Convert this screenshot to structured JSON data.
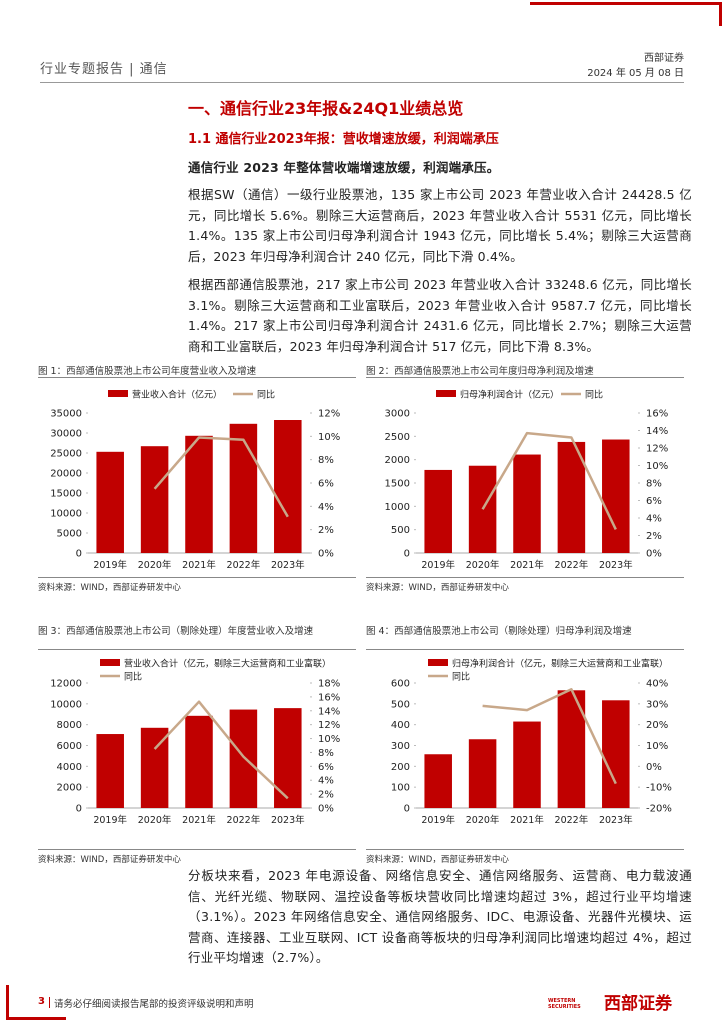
{
  "header": {
    "section": "行业专题报告 | 通信",
    "company": "西部证券",
    "date": "2024 年 05 月 08 日"
  },
  "heading": "一、通信行业23年报&24Q1业绩总览",
  "subheading": "1.1 通信行业2023年报：营收增速放缓，利润端承压",
  "paragraphs": [
    "通信行业 2023 年整体营收端增速放缓，利润端承压。",
    "根据SW（通信）一级行业股票池，135 家上市公司 2023 年营业收入合计 24428.5 亿元，同比增长 5.6%。剔除三大运营商后，2023 年营业收入合计 5531 亿元，同比增长 1.4%。135 家上市公司归母净利润合计 1943 亿元，同比增长 5.4%；剔除三大运营商后，2023 年归母净利润合计 240 亿元，同比下滑 0.4%。",
    "根据西部通信股票池，217 家上市公司 2023 年营业收入合计 33248.6 亿元，同比增长 3.1%。剔除三大运营商和工业富联后，2023 年营业收入合计 9587.7 亿元，同比增长 1.4%。217 家上市公司归母净利润合计 2431.6 亿元，同比增长 2.7%；剔除三大运营商和工业富联后，2023 年归母净利润合计 517 亿元，同比下滑 8.3%。",
    "分板块来看，2023 年电源设备、网络信息安全、通信网络服务、运营商、电力载波通信、光纤光缆、物联网、温控设备等板块营收同比增速均超过 3%，超过行业平均增速（3.1%）。2023 年网络信息安全、通信网络服务、IDC、电源设备、光器件光模块、运营商、连接器、工业互联网、ICT 设备商等板块的归母净利润同比增速均超过 4%，超过行业平均增速（2.7%）。"
  ],
  "chart_data": [
    {
      "type": "bar-line",
      "title": "图 1：西部通信股票池上市公司年度营业收入及增速",
      "source": "资料来源：WIND，西部证券研发中心",
      "categories": [
        "2019年",
        "2020年",
        "2021年",
        "2022年",
        "2023年"
      ],
      "series": [
        {
          "name": "营业收入合计（亿元）",
          "color": "#c00000",
          "type": "bar",
          "values": [
            25300,
            26700,
            29300,
            32300,
            33248.6
          ]
        },
        {
          "name": "同比",
          "color": "#c8a88a",
          "type": "line",
          "axis": "y2",
          "values": [
            null,
            5.5,
            9.9,
            9.7,
            3.1
          ]
        }
      ],
      "ylim": [
        0,
        35000
      ],
      "yticks": [
        0,
        5000,
        10000,
        15000,
        20000,
        25000,
        30000,
        35000
      ],
      "y2lim": [
        0,
        12
      ],
      "y2ticks": [
        {
          "value": 0,
          "label": "0%"
        },
        {
          "value": 2,
          "label": "2%"
        },
        {
          "value": 4,
          "label": "4%"
        },
        {
          "value": 6,
          "label": "6%"
        },
        {
          "value": 8,
          "label": "8%"
        },
        {
          "value": 10,
          "label": "10%"
        },
        {
          "value": 12,
          "label": "12%"
        }
      ],
      "legend": "top"
    },
    {
      "type": "bar-line",
      "title": "图 2：西部通信股票池上市公司年度归母净利润及增速",
      "source": "资料来源：WIND，西部证券研发中心",
      "categories": [
        "2019年",
        "2020年",
        "2021年",
        "2022年",
        "2023年"
      ],
      "series": [
        {
          "name": "归母净利润合计（亿元）",
          "color": "#c00000",
          "type": "bar",
          "values": [
            1780,
            1870,
            2110,
            2380,
            2431.6
          ]
        },
        {
          "name": "同比",
          "color": "#c8a88a",
          "type": "line",
          "axis": "y2",
          "values": [
            null,
            5,
            13.7,
            13.2,
            2.7
          ]
        }
      ],
      "ylim": [
        0,
        3000
      ],
      "yticks": [
        0,
        500,
        1000,
        1500,
        2000,
        2500,
        3000
      ],
      "y2lim": [
        0,
        16
      ],
      "y2ticks": [
        {
          "value": 0,
          "label": "0%"
        },
        {
          "value": 2,
          "label": "2%"
        },
        {
          "value": 4,
          "label": "4%"
        },
        {
          "value": 6,
          "label": "6%"
        },
        {
          "value": 8,
          "label": "8%"
        },
        {
          "value": 10,
          "label": "10%"
        },
        {
          "value": 12,
          "label": "12%"
        },
        {
          "value": 14,
          "label": "14%"
        },
        {
          "value": 16,
          "label": "16%"
        }
      ],
      "legend": "top"
    },
    {
      "type": "bar-line",
      "title": "图 3：西部通信股票池上市公司（剔除处理）年度营业收入及增速",
      "source": "资料来源：WIND，西部证券研发中心",
      "categories": [
        "2019年",
        "2020年",
        "2021年",
        "2022年",
        "2023年"
      ],
      "series": [
        {
          "name": "营业收入合计（亿元，剔除三大运营商和工业富联）",
          "color": "#c00000",
          "type": "bar",
          "values": [
            7100,
            7700,
            8850,
            9450,
            9587.7
          ]
        },
        {
          "name": "同比",
          "color": "#c8a88a",
          "type": "line",
          "axis": "y2",
          "values": [
            null,
            8.5,
            15.3,
            7.4,
            1.4
          ]
        }
      ],
      "ylim": [
        0,
        12000
      ],
      "yticks": [
        0,
        2000,
        4000,
        6000,
        8000,
        10000,
        12000
      ],
      "y2lim": [
        0,
        18
      ],
      "y2ticks": [
        {
          "value": 0,
          "label": "0%"
        },
        {
          "value": 2,
          "label": "2%"
        },
        {
          "value": 4,
          "label": "4%"
        },
        {
          "value": 6,
          "label": "6%"
        },
        {
          "value": 8,
          "label": "8%"
        },
        {
          "value": 10,
          "label": "10%"
        },
        {
          "value": 12,
          "label": "12%"
        },
        {
          "value": 14,
          "label": "14%"
        },
        {
          "value": 16,
          "label": "16%"
        },
        {
          "value": 18,
          "label": "18%"
        }
      ],
      "legend": "top-stacked"
    },
    {
      "type": "bar-line",
      "title": "图 4：西部通信股票池上市公司（剔除处理）归母净利润及增速",
      "source": "资料来源：WIND，西部证券研发中心",
      "categories": [
        "2019年",
        "2020年",
        "2021年",
        "2022年",
        "2023年"
      ],
      "series": [
        {
          "name": "归母净利润合计（亿元，剔除三大运营商和工业富联）",
          "color": "#c00000",
          "type": "bar",
          "values": [
            258,
            330,
            415,
            565,
            517
          ]
        },
        {
          "name": "同比",
          "color": "#c8a88a",
          "type": "line",
          "axis": "y2",
          "values": [
            null,
            29,
            27,
            37,
            -8.3
          ]
        }
      ],
      "ylim": [
        0,
        600
      ],
      "yticks": [
        0,
        100,
        200,
        300,
        400,
        500,
        600
      ],
      "y2lim": [
        -20,
        40
      ],
      "y2ticks": [
        {
          "value": -20,
          "label": "-20%"
        },
        {
          "value": -10,
          "label": "-10%"
        },
        {
          "value": 0,
          "label": "0%"
        },
        {
          "value": 10,
          "label": "10%"
        },
        {
          "value": 20,
          "label": "20%"
        },
        {
          "value": 30,
          "label": "30%"
        },
        {
          "value": 40,
          "label": "40%"
        }
      ],
      "legend": "top-stacked"
    }
  ],
  "footer": {
    "page": "3",
    "disclaimer": "请务必仔细阅读报告尾部的投资评级说明和声明"
  },
  "logo": {
    "en": "WESTERN SECURITIES",
    "cn": "西部证券"
  }
}
